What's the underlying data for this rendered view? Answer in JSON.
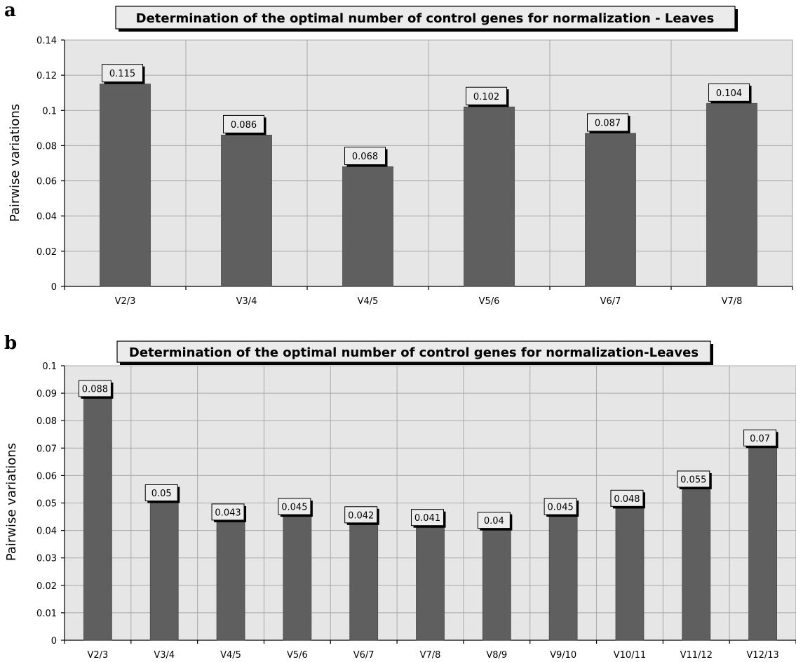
{
  "chart_data": [
    {
      "panel_label": "a",
      "type": "bar",
      "title": "Determination of the optimal number of control genes for normalization - Leaves",
      "xlabel": "",
      "ylabel": "Pairwise variations",
      "categories": [
        "V2/3",
        "V3/4",
        "V4/5",
        "V5/6",
        "V6/7",
        "V7/8"
      ],
      "values": [
        0.115,
        0.086,
        0.068,
        0.102,
        0.087,
        0.104
      ],
      "data_labels": [
        "0.115",
        "0.086",
        "0.068",
        "0.102",
        "0.087",
        "0.104"
      ],
      "ylim": [
        0,
        0.14
      ],
      "yticks": [
        0,
        0.02,
        0.04,
        0.06,
        0.08,
        0.1,
        0.12,
        0.14
      ],
      "ytick_labels": [
        "0",
        "0.02",
        "0.04",
        "0.06",
        "0.08",
        "0.1",
        "0.12",
        "0.14"
      ],
      "grid": true,
      "legend": "none",
      "colors": {
        "bar": "#5f5f5f",
        "plot_background": "#e6e6e6",
        "gridline": "#a9a9a9"
      }
    },
    {
      "panel_label": "b",
      "type": "bar",
      "title": "Determination of the optimal number of control genes for normalization-Leaves",
      "xlabel": "",
      "ylabel": "Pairwise variations",
      "categories": [
        "V2/3",
        "V3/4",
        "V4/5",
        "V5/6",
        "V6/7",
        "V7/8",
        "V8/9",
        "V9/10",
        "V10/11",
        "V11/12",
        "V12/13"
      ],
      "values": [
        0.088,
        0.05,
        0.043,
        0.045,
        0.042,
        0.041,
        0.04,
        0.045,
        0.048,
        0.055,
        0.07
      ],
      "data_labels": [
        "0.088",
        "0.05",
        "0.043",
        "0.045",
        "0.042",
        "0.041",
        "0.04",
        "0.045",
        "0.048",
        "0.055",
        "0.07"
      ],
      "ylim": [
        0,
        0.1
      ],
      "yticks": [
        0,
        0.01,
        0.02,
        0.03,
        0.04,
        0.05,
        0.06,
        0.07,
        0.08,
        0.09,
        0.1
      ],
      "ytick_labels": [
        "0",
        "0.01",
        "0.02",
        "0.03",
        "0.04",
        "0.05",
        "0.06",
        "0.07",
        "0.08",
        "0.09",
        "0.1"
      ],
      "grid": true,
      "legend": "none",
      "colors": {
        "bar": "#5f5f5f",
        "plot_background": "#e6e6e6",
        "gridline": "#a9a9a9"
      }
    }
  ]
}
